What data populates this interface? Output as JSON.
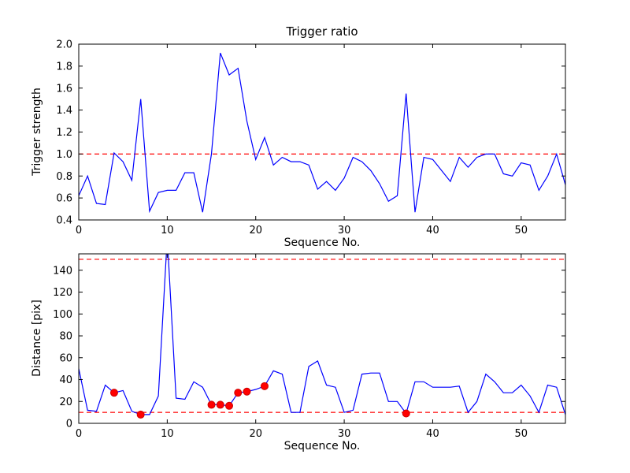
{
  "figure": {
    "background": "#ffffff",
    "axis_color": "#000000",
    "line_color": "#0000ff",
    "threshold_color": "#ff0000",
    "marker_color": "#ff0000",
    "marker_edge_color": "#cc0000"
  },
  "chart_data": [
    {
      "type": "line",
      "title": "Trigger ratio",
      "xlabel": "Sequence No.",
      "ylabel": "Trigger strength",
      "xlim": [
        0,
        55
      ],
      "ylim": [
        0.4,
        2.0
      ],
      "xticks": [
        0,
        10,
        20,
        30,
        40,
        50
      ],
      "xtick_labels": [
        "0",
        "10",
        "20",
        "30",
        "40",
        "50"
      ],
      "yticks": [
        0.4,
        0.6,
        0.8,
        1.0,
        1.2,
        1.4,
        1.6,
        1.8,
        2.0
      ],
      "ytick_labels": [
        "0.4",
        "0.6",
        "0.8",
        "1.0",
        "1.2",
        "1.4",
        "1.6",
        "1.8",
        "2.0"
      ],
      "thresholds": [
        1.0
      ],
      "legend": "none",
      "grid": false,
      "y": [
        0.62,
        0.8,
        0.55,
        0.54,
        1.01,
        0.93,
        0.76,
        1.5,
        0.48,
        0.65,
        0.67,
        0.67,
        0.83,
        0.83,
        0.47,
        1.0,
        1.92,
        1.72,
        1.78,
        1.3,
        0.95,
        1.15,
        0.9,
        0.97,
        0.93,
        0.93,
        0.9,
        0.68,
        0.75,
        0.67,
        0.78,
        0.97,
        0.93,
        0.85,
        0.73,
        0.57,
        0.62,
        1.55,
        0.47,
        0.97,
        0.95,
        0.85,
        0.75,
        0.97,
        0.88,
        0.97,
        1.0,
        1.0,
        0.82,
        0.8,
        0.92,
        0.9,
        0.67,
        0.8,
        1.0,
        0.72
      ]
    },
    {
      "type": "line",
      "title": "",
      "xlabel": "Sequence No.",
      "ylabel": "Distance [pix]",
      "xlim": [
        0,
        55
      ],
      "ylim": [
        0,
        155
      ],
      "xticks": [
        0,
        10,
        20,
        30,
        40,
        50
      ],
      "xtick_labels": [
        "0",
        "10",
        "20",
        "30",
        "40",
        "50"
      ],
      "yticks": [
        0,
        20,
        40,
        60,
        80,
        100,
        120,
        140
      ],
      "ytick_labels": [
        "0",
        "20",
        "40",
        "60",
        "80",
        "100",
        "120",
        "140"
      ],
      "thresholds": [
        150,
        10
      ],
      "legend": "none",
      "grid": false,
      "y": [
        50,
        12,
        11,
        35,
        28,
        30,
        11,
        8,
        8,
        25,
        170,
        23,
        22,
        38,
        33,
        17,
        17,
        16,
        28,
        29,
        31,
        34,
        48,
        45,
        10,
        10,
        52,
        57,
        35,
        33,
        10,
        12,
        45,
        46,
        46,
        20,
        20,
        9,
        38,
        38,
        33,
        33,
        33,
        34,
        10,
        20,
        45,
        38,
        28,
        28,
        35,
        25,
        10,
        35,
        33,
        8
      ],
      "markers": [
        [
          4,
          28
        ],
        [
          7,
          8
        ],
        [
          15,
          17
        ],
        [
          16,
          17
        ],
        [
          17,
          16
        ],
        [
          18,
          28
        ],
        [
          19,
          29
        ],
        [
          21,
          34
        ],
        [
          37,
          9
        ]
      ]
    }
  ]
}
